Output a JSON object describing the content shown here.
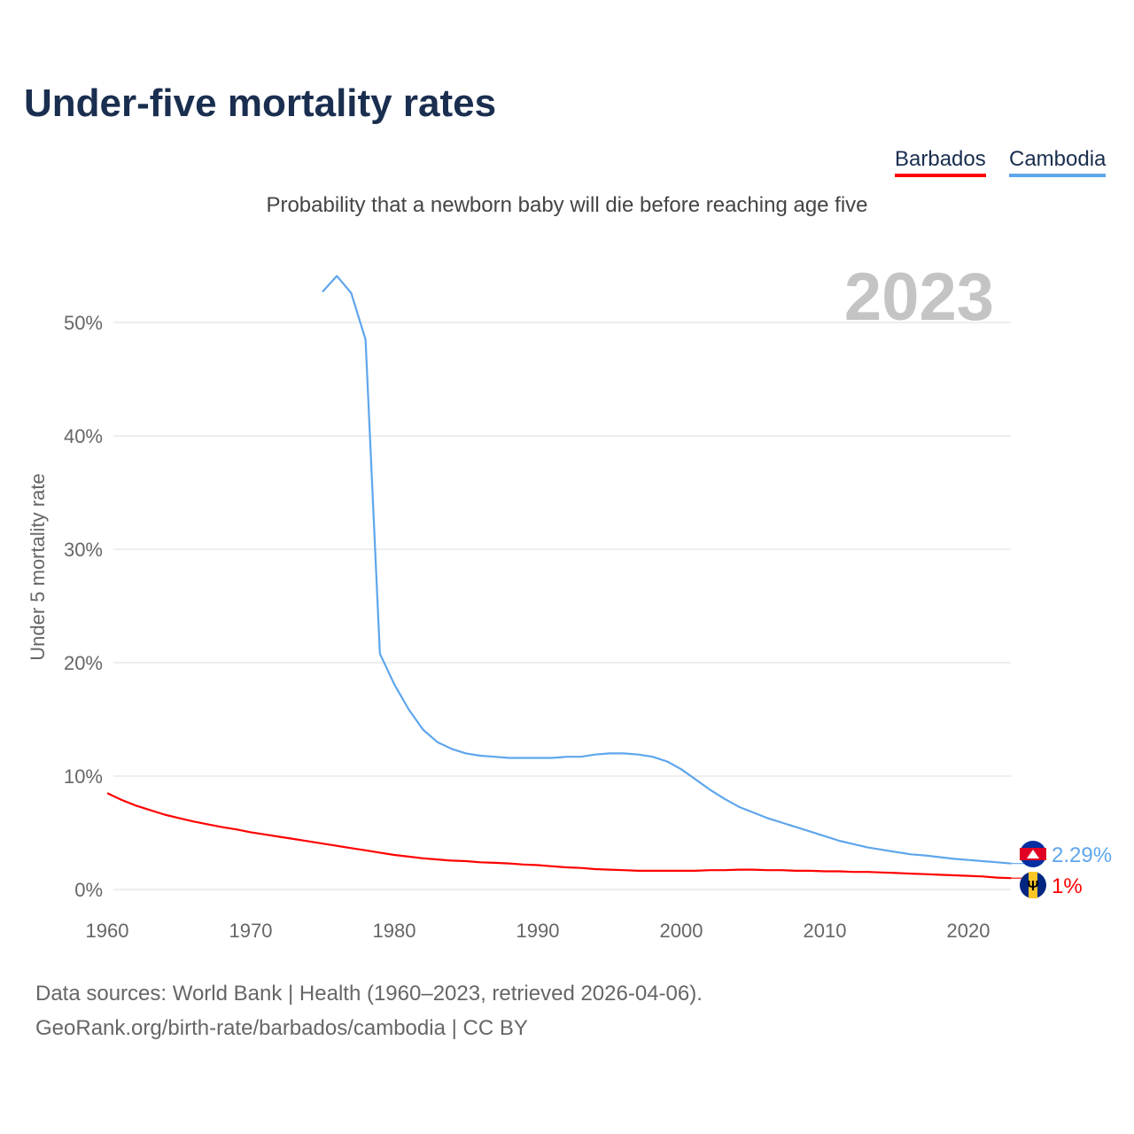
{
  "chart_data": {
    "type": "line",
    "title": "Under-five mortality rates",
    "subtitle": "Probability that a newborn baby will die before reaching age five",
    "ylabel": "Under 5 mortality rate",
    "xlabel": "",
    "xlim": [
      1960,
      2023
    ],
    "ylim": [
      0,
      50
    ],
    "x_ticks": [
      "1960",
      "1970",
      "1980",
      "1990",
      "2000",
      "2010",
      "2020"
    ],
    "y_ticks": [
      "0%",
      "10%",
      "20%",
      "30%",
      "40%",
      "50%"
    ],
    "grid": true,
    "legend_placement": "top-right",
    "current_year": "2023",
    "series": [
      {
        "name": "Barbados",
        "color": "#ff0000",
        "start_year": 1960,
        "end_label": "1%",
        "values": [
          8.5,
          7.9,
          7.4,
          7.0,
          6.6,
          6.3,
          6.0,
          5.75,
          5.5,
          5.3,
          5.05,
          4.85,
          4.65,
          4.45,
          4.25,
          4.05,
          3.85,
          3.65,
          3.45,
          3.25,
          3.05,
          2.9,
          2.75,
          2.65,
          2.55,
          2.5,
          2.4,
          2.35,
          2.3,
          2.2,
          2.15,
          2.05,
          1.95,
          1.9,
          1.8,
          1.75,
          1.7,
          1.65,
          1.65,
          1.65,
          1.65,
          1.65,
          1.7,
          1.7,
          1.75,
          1.75,
          1.7,
          1.7,
          1.65,
          1.65,
          1.6,
          1.6,
          1.55,
          1.55,
          1.5,
          1.45,
          1.4,
          1.35,
          1.3,
          1.25,
          1.2,
          1.15,
          1.05,
          1.0
        ]
      },
      {
        "name": "Cambodia",
        "color": "#5ea6ec",
        "start_year": 1975,
        "end_label": "2.29%",
        "values": [
          52.7,
          54.1,
          52.6,
          48.5,
          20.8,
          18.1,
          15.9,
          14.1,
          13.0,
          12.4,
          12.0,
          11.8,
          11.7,
          11.6,
          11.6,
          11.6,
          11.6,
          11.7,
          11.7,
          11.9,
          12.0,
          12.0,
          11.9,
          11.7,
          11.3,
          10.6,
          9.7,
          8.8,
          8.0,
          7.3,
          6.8,
          6.3,
          5.9,
          5.5,
          5.1,
          4.7,
          4.3,
          4.0,
          3.7,
          3.5,
          3.3,
          3.1,
          3.0,
          2.85,
          2.7,
          2.6,
          2.5,
          2.4,
          2.29
        ]
      }
    ]
  },
  "footer": {
    "line1": "Data sources: World Bank | Health (1960–2023, retrieved 2026-04-06).",
    "line2": "GeoRank.org/birth-rate/barbados/cambodia | CC BY"
  }
}
